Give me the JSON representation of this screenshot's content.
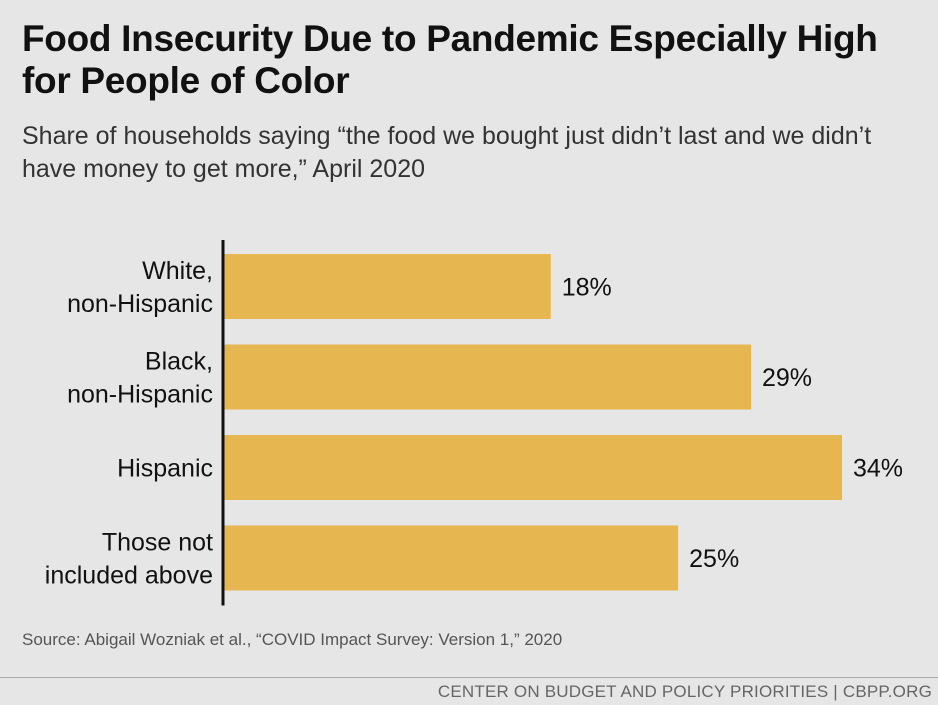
{
  "title": "Food Insecurity Due to Pandemic Especially High for People of Color",
  "subtitle": "Share of households saying “the food we bought just didn’t last and we didn’t have money to get more,” April 2020",
  "source": "Source: Abigail Wozniak et al., “COVID Impact Survey: Version 1,” 2020",
  "footer": "CENTER ON BUDGET AND POLICY PRIORITIES | CBPP.ORG",
  "colors": {
    "bar": "#e6b751",
    "axis": "#111111",
    "text": "#111111"
  },
  "chart_data": {
    "type": "bar",
    "orientation": "horizontal",
    "categories": [
      [
        "White,",
        "non-Hispanic"
      ],
      [
        "Black,",
        "non-Hispanic"
      ],
      [
        "Hispanic"
      ],
      [
        "Those not",
        "included above"
      ]
    ],
    "values": [
      18,
      29,
      34,
      25
    ],
    "value_labels": [
      "18%",
      "29%",
      "34%",
      "25%"
    ],
    "xlim": [
      0,
      34
    ]
  }
}
